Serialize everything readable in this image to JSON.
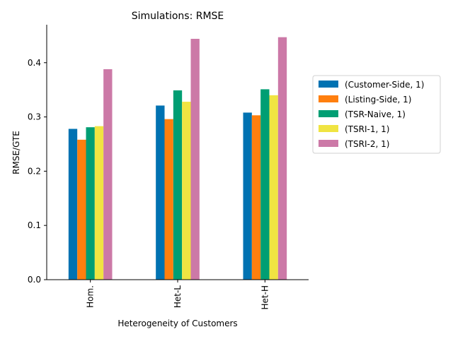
{
  "chart_data": {
    "type": "bar",
    "title": "Simulations: RMSE",
    "xlabel": "Heterogeneity of Customers",
    "ylabel": "RMSE/GTE",
    "categories": [
      "Hom.",
      "Het-L",
      "Het-H"
    ],
    "ylim": [
      0,
      0.47
    ],
    "yticks": [
      0.0,
      0.1,
      0.2,
      0.3,
      0.4
    ],
    "ytick_labels": [
      "0.0",
      "0.1",
      "0.2",
      "0.3",
      "0.4"
    ],
    "grid": false,
    "legend_position": "right",
    "series": [
      {
        "name": "(Customer-Side, 1)",
        "color": "#0072b2",
        "values": [
          0.278,
          0.321,
          0.308
        ]
      },
      {
        "name": "(Listing-Side, 1)",
        "color": "#ff7f0e",
        "values": [
          0.258,
          0.296,
          0.303
        ]
      },
      {
        "name": "(TSR-Naive, 1)",
        "color": "#009e73",
        "values": [
          0.281,
          0.349,
          0.351
        ]
      },
      {
        "name": "(TSRI-1, 1)",
        "color": "#f0e442",
        "values": [
          0.283,
          0.328,
          0.34
        ]
      },
      {
        "name": "(TSRI-2, 1)",
        "color": "#cc79a7",
        "values": [
          0.388,
          0.444,
          0.447
        ]
      }
    ]
  }
}
